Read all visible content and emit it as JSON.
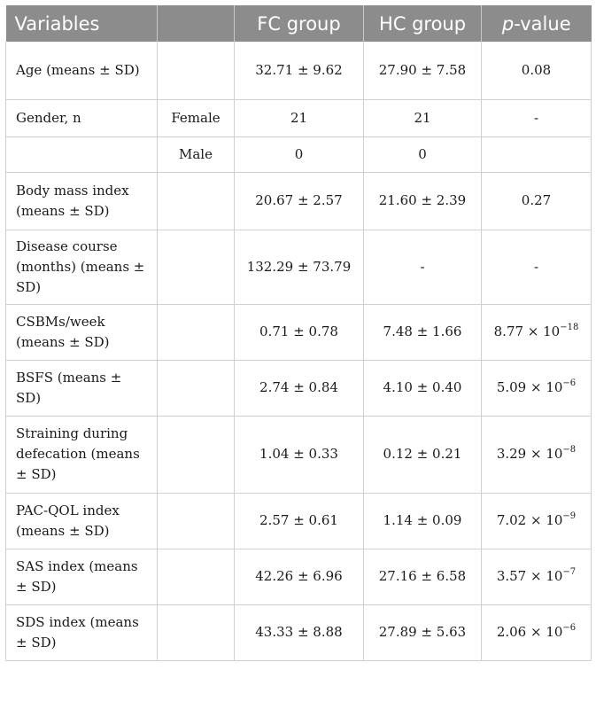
{
  "table": {
    "headers": {
      "variables": "Variables",
      "subgroup": "",
      "fc_group": "FC group",
      "hc_group": "HC group",
      "p_value_italic": "p",
      "p_value_rest": "-value"
    },
    "rows": [
      {
        "variable": "Age (means ± SD)",
        "sub": "",
        "fc": "32.71 ± 9.62",
        "hc": "27.90 ± 7.58",
        "p_base": "0.08",
        "p_exp": ""
      },
      {
        "variable": "Gender, n",
        "sub": "Female",
        "fc": "21",
        "hc": "21",
        "p_base": "-",
        "p_exp": ""
      },
      {
        "variable": "",
        "sub": "Male",
        "fc": "0",
        "hc": "0",
        "p_base": "",
        "p_exp": ""
      },
      {
        "variable": "Body mass index (means ± SD)",
        "sub": "",
        "fc": "20.67 ± 2.57",
        "hc": "21.60 ± 2.39",
        "p_base": "0.27",
        "p_exp": ""
      },
      {
        "variable": "Disease course (months) (means ± SD)",
        "sub": "",
        "fc": "132.29 ± 73.79",
        "hc": "-",
        "p_base": "-",
        "p_exp": ""
      },
      {
        "variable": "CSBMs/week (means ± SD)",
        "sub": "",
        "fc": "0.71 ± 0.78",
        "hc": "7.48 ± 1.66",
        "p_base": "8.77 × 10",
        "p_exp": "−18"
      },
      {
        "variable": "BSFS (means ± SD)",
        "sub": "",
        "fc": "2.74 ± 0.84",
        "hc": "4.10 ± 0.40",
        "p_base": "5.09 × 10",
        "p_exp": "−6"
      },
      {
        "variable": "Straining during defecation (means ± SD)",
        "sub": "",
        "fc": "1.04 ± 0.33",
        "hc": "0.12 ± 0.21",
        "p_base": "3.29 × 10",
        "p_exp": "−8"
      },
      {
        "variable": "PAC-QOL index (means ± SD)",
        "sub": "",
        "fc": "2.57 ± 0.61",
        "hc": "1.14 ± 0.09",
        "p_base": "7.02 × 10",
        "p_exp": "−9"
      },
      {
        "variable": "SAS index (means ± SD)",
        "sub": "",
        "fc": "42.26 ± 6.96",
        "hc": "27.16 ± 6.58",
        "p_base": "3.57 × 10",
        "p_exp": "−7"
      },
      {
        "variable": "SDS index (means ± SD)",
        "sub": "",
        "fc": "43.33 ± 8.88",
        "hc": "27.89 ± 5.63",
        "p_base": "2.06 × 10",
        "p_exp": "−6"
      }
    ]
  }
}
